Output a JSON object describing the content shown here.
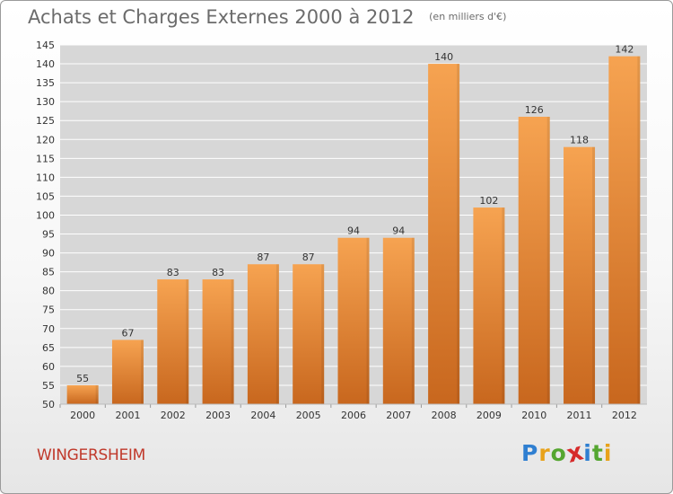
{
  "title": "Achats et Charges Externes 2000 à 2012",
  "subtitle": "(en milliers d'€)",
  "commune": "WINGERSHEIM",
  "logo": {
    "letters": [
      "P",
      "r",
      "o",
      "x",
      "i",
      "t",
      "i"
    ],
    "colors": [
      "#2f7fd1",
      "#e8a21a",
      "#55a630",
      "#d62b2b",
      "#2f7fd1",
      "#55a630",
      "#e8a21a"
    ]
  },
  "colors": {
    "bar_top": "#f6a351",
    "bar_bottom": "#c8671e",
    "plot_bg": "#d7d7d7",
    "grid": "#ffffff"
  },
  "chart_data": {
    "type": "bar",
    "categories": [
      "2000",
      "2001",
      "2002",
      "2003",
      "2004",
      "2005",
      "2006",
      "2007",
      "2008",
      "2009",
      "2010",
      "2011",
      "2012"
    ],
    "values": [
      55,
      67,
      83,
      83,
      87,
      87,
      94,
      94,
      140,
      102,
      126,
      118,
      142
    ],
    "data_labels": [
      "55",
      "67",
      "83",
      "83",
      "87",
      "87",
      "94",
      "94",
      "140",
      "102",
      "126",
      "118",
      "142"
    ],
    "ylim": [
      50,
      145
    ],
    "yticks": [
      50,
      55,
      60,
      65,
      70,
      75,
      80,
      85,
      90,
      95,
      100,
      105,
      110,
      115,
      120,
      125,
      130,
      135,
      140,
      145
    ],
    "grid": true,
    "xlabel": "",
    "ylabel": ""
  }
}
